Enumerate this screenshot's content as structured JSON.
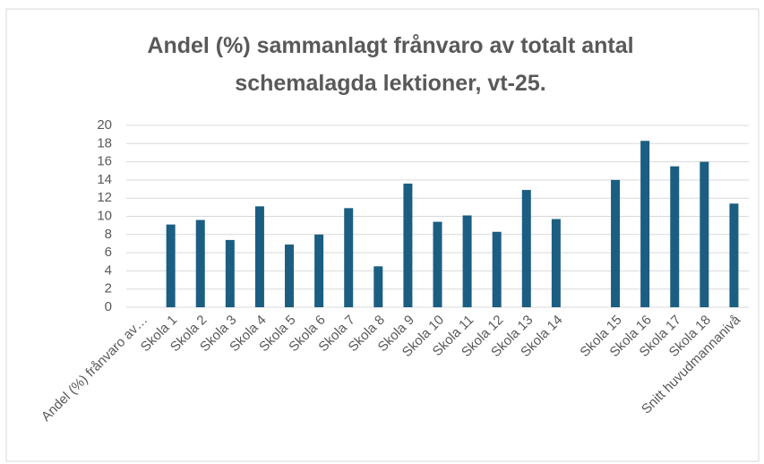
{
  "chart_data": {
    "type": "bar",
    "title": "Andel (%) sammanlagt frånvaro av totalt antal schemalagda lektioner, vt-25.",
    "categories": [
      "Andel (%) frånvaro av…",
      "Skola 1",
      "Skola 2",
      "Skola 3",
      "Skola 4",
      "Skola 5",
      "Skola 6",
      "Skola 7",
      "Skola 8",
      "Skola 9",
      "Skola 10",
      "Skola 11",
      "Skola 12",
      "Skola 13",
      "Skola 14",
      null,
      "Skola 15",
      "Skola 16",
      "Skola 17",
      "Skola 18",
      "Snitt huvudmannanivå"
    ],
    "values": [
      null,
      9.1,
      9.6,
      7.4,
      11.1,
      6.9,
      8.0,
      10.9,
      4.5,
      13.6,
      9.4,
      10.1,
      8.3,
      12.9,
      9.7,
      null,
      14.0,
      18.3,
      15.5,
      16.0,
      11.4
    ],
    "color": "#1b5e82",
    "ylim": [
      0,
      20
    ],
    "yticks": [
      0,
      2,
      4,
      6,
      8,
      10,
      12,
      14,
      16,
      18,
      20
    ],
    "grid": true
  }
}
